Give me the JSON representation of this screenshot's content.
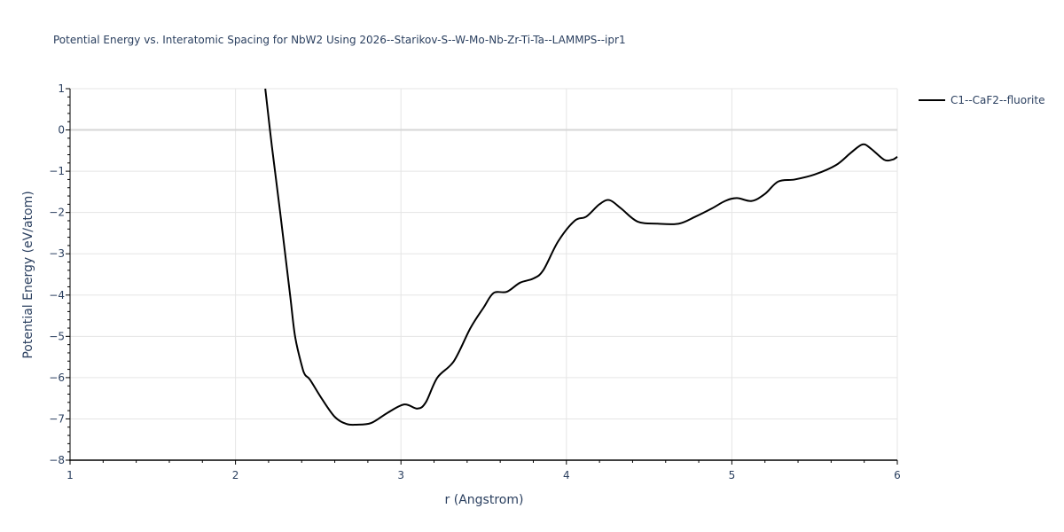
{
  "chart": {
    "title": "Potential Energy vs. Interatomic Spacing for NbW2 Using 2026--Starikov-S--W-Mo-Nb-Zr-Ti-Ta--LAMMPS--ipr1",
    "xlabel": "r (Angstrom)",
    "ylabel": "Potential Energy (eV/atom)",
    "legend_label": "C1--CaF2--fluorite",
    "line_color": "#000000",
    "grid_color": "#e5e5e5"
  },
  "chart_data": {
    "type": "line",
    "title": "Potential Energy vs. Interatomic Spacing for NbW2 Using 2026--Starikov-S--W-Mo-Nb-Zr-Ti-Ta--LAMMPS--ipr1",
    "xlabel": "r (Angstrom)",
    "ylabel": "Potential Energy (eV/atom)",
    "xlim": [
      1,
      6
    ],
    "ylim": [
      -8,
      1
    ],
    "x_ticks": [
      1,
      2,
      3,
      4,
      5,
      6
    ],
    "y_ticks": [
      1,
      0,
      -1,
      -2,
      -3,
      -4,
      -5,
      -6,
      -7,
      -8
    ],
    "grid": true,
    "legend_position": "top-right-outside",
    "series": [
      {
        "name": "C1--CaF2--fluorite",
        "x": [
          2.18,
          2.22,
          2.27,
          2.33,
          2.36,
          2.4,
          2.42,
          2.45,
          2.52,
          2.6,
          2.67,
          2.73,
          2.82,
          2.92,
          3.02,
          3.1,
          3.15,
          3.22,
          3.32,
          3.42,
          3.5,
          3.56,
          3.64,
          3.72,
          3.8,
          3.86,
          3.95,
          4.05,
          4.12,
          4.2,
          4.26,
          4.33,
          4.43,
          4.55,
          4.68,
          4.78,
          4.88,
          4.96,
          5.03,
          5.12,
          5.2,
          5.28,
          5.38,
          5.5,
          5.63,
          5.72,
          5.79,
          5.84,
          5.92,
          5.97,
          6.0
        ],
        "y": [
          1.0,
          -0.4,
          -2.0,
          -4.0,
          -5.0,
          -5.7,
          -5.93,
          -6.05,
          -6.5,
          -6.95,
          -7.12,
          -7.14,
          -7.1,
          -6.85,
          -6.65,
          -6.75,
          -6.6,
          -6.0,
          -5.6,
          -4.8,
          -4.3,
          -3.95,
          -3.92,
          -3.7,
          -3.6,
          -3.4,
          -2.7,
          -2.2,
          -2.1,
          -1.8,
          -1.7,
          -1.9,
          -2.22,
          -2.27,
          -2.27,
          -2.1,
          -1.9,
          -1.72,
          -1.65,
          -1.72,
          -1.55,
          -1.25,
          -1.2,
          -1.08,
          -0.85,
          -0.55,
          -0.35,
          -0.45,
          -0.72,
          -0.72,
          -0.65
        ]
      }
    ]
  }
}
